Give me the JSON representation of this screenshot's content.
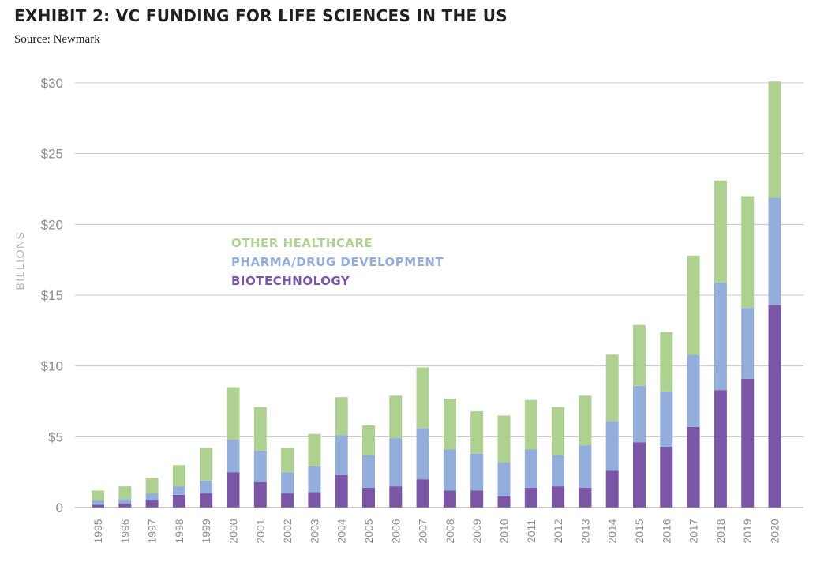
{
  "header": {
    "title": "EXHIBIT 2: VC FUNDING FOR LIFE SCIENCES IN THE US",
    "source": "Source: Newmark"
  },
  "colors": {
    "biotechnology": "#7b56a6",
    "pharma": "#94aedb",
    "other": "#aed192",
    "grid": "#c4c4c4",
    "axis": "#9a9a9a"
  },
  "chart_data": {
    "type": "bar",
    "stacked": true,
    "ylabel": "BILLIONS",
    "ylim": [
      0,
      30
    ],
    "yticks": [
      0,
      5,
      10,
      15,
      20,
      25,
      30
    ],
    "ytick_labels": [
      "0",
      "$5",
      "$10",
      "$15",
      "$20",
      "$25",
      "$30"
    ],
    "grid": true,
    "legend_position": "center-left",
    "categories": [
      "1995",
      "1996",
      "1997",
      "1998",
      "1999",
      "2000",
      "2001",
      "2002",
      "2003",
      "2004",
      "2005",
      "2006",
      "2007",
      "2008",
      "2009",
      "2010",
      "2011",
      "2012",
      "2013",
      "2014",
      "2015",
      "2016",
      "2017",
      "2018",
      "2019",
      "2020"
    ],
    "series": [
      {
        "name": "BIOTECHNOLOGY",
        "values": [
          0.2,
          0.3,
          0.5,
          0.9,
          1.0,
          2.5,
          1.8,
          1.0,
          1.1,
          2.3,
          1.4,
          1.5,
          2.0,
          1.2,
          1.2,
          0.8,
          1.4,
          1.5,
          1.4,
          2.6,
          4.6,
          4.3,
          5.7,
          8.3,
          9.1,
          14.3
        ]
      },
      {
        "name": "PHARMA/DRUG DEVELOPMENT",
        "values": [
          0.3,
          0.3,
          0.5,
          0.6,
          0.9,
          2.3,
          2.2,
          1.5,
          1.8,
          2.8,
          2.3,
          3.4,
          3.6,
          2.9,
          2.6,
          2.4,
          2.7,
          2.2,
          3.0,
          3.5,
          4.0,
          3.9,
          5.1,
          7.6,
          5.0,
          7.6
        ]
      },
      {
        "name": "OTHER HEALTHCARE",
        "values": [
          0.7,
          0.9,
          1.1,
          1.5,
          2.3,
          3.7,
          3.1,
          1.7,
          2.3,
          2.7,
          2.1,
          3.0,
          4.3,
          3.6,
          3.0,
          3.3,
          3.5,
          3.4,
          3.5,
          4.7,
          4.3,
          4.2,
          7.0,
          7.2,
          7.9,
          8.2
        ]
      }
    ]
  }
}
